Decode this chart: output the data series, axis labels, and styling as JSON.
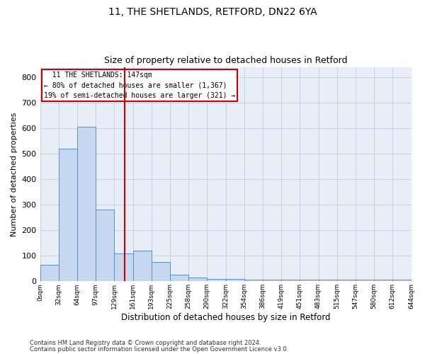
{
  "title1": "11, THE SHETLANDS, RETFORD, DN22 6YA",
  "title2": "Size of property relative to detached houses in Retford",
  "xlabel": "Distribution of detached houses by size in Retford",
  "ylabel": "Number of detached properties",
  "footer1": "Contains HM Land Registry data © Crown copyright and database right 2024.",
  "footer2": "Contains public sector information licensed under the Open Government Licence v3.0.",
  "bins": [
    "0sqm",
    "32sqm",
    "64sqm",
    "97sqm",
    "129sqm",
    "161sqm",
    "193sqm",
    "225sqm",
    "258sqm",
    "290sqm",
    "322sqm",
    "354sqm",
    "386sqm",
    "419sqm",
    "451sqm",
    "483sqm",
    "515sqm",
    "547sqm",
    "580sqm",
    "612sqm",
    "644sqm"
  ],
  "values": [
    65,
    520,
    605,
    280,
    110,
    120,
    75,
    25,
    15,
    10,
    10,
    7,
    7,
    5,
    5,
    5,
    5,
    5,
    5,
    5
  ],
  "bar_color": "#c5d8f0",
  "bar_edge_color": "#5b8dc8",
  "grid_color": "#c8d0e0",
  "bg_color": "#e8eef8",
  "annotation_line1": "  11 THE SHETLANDS: 147sqm",
  "annotation_line2": "← 80% of detached houses are smaller (1,367)",
  "annotation_line3": "19% of semi-detached houses are larger (321) →",
  "vline_color": "#cc0000",
  "annotation_box_color": "#cc0000",
  "ylim": [
    0,
    840
  ],
  "yticks": [
    0,
    100,
    200,
    300,
    400,
    500,
    600,
    700,
    800
  ],
  "n_bins": 20,
  "vline_bin": 4.5625
}
